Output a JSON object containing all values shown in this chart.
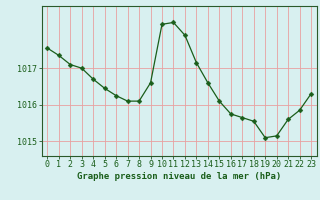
{
  "x": [
    0,
    1,
    2,
    3,
    4,
    5,
    6,
    7,
    8,
    9,
    10,
    11,
    12,
    13,
    14,
    15,
    16,
    17,
    18,
    19,
    20,
    21,
    22,
    23
  ],
  "y": [
    1017.55,
    1017.35,
    1017.1,
    1017.0,
    1016.7,
    1016.45,
    1016.25,
    1016.1,
    1016.1,
    1016.6,
    1018.2,
    1018.25,
    1017.9,
    1017.15,
    1016.6,
    1016.1,
    1015.75,
    1015.65,
    1015.55,
    1015.1,
    1015.15,
    1015.6,
    1015.85,
    1016.3
  ],
  "line_color": "#1a5e1a",
  "marker": "D",
  "marker_size": 2.5,
  "bg_color": "#d8f0f0",
  "grid_color": "#e8a0a0",
  "axis_color": "#2a5a2a",
  "xlabel": "Graphe pression niveau de la mer (hPa)",
  "xlabel_fontsize": 6.5,
  "ytick_labels": [
    "1015",
    "1016",
    "1017"
  ],
  "ytick_vals": [
    1015,
    1016,
    1017
  ],
  "ylim": [
    1014.6,
    1018.7
  ],
  "xlim": [
    -0.5,
    23.5
  ],
  "tick_fontsize": 6,
  "tick_color": "#1a5e1a"
}
